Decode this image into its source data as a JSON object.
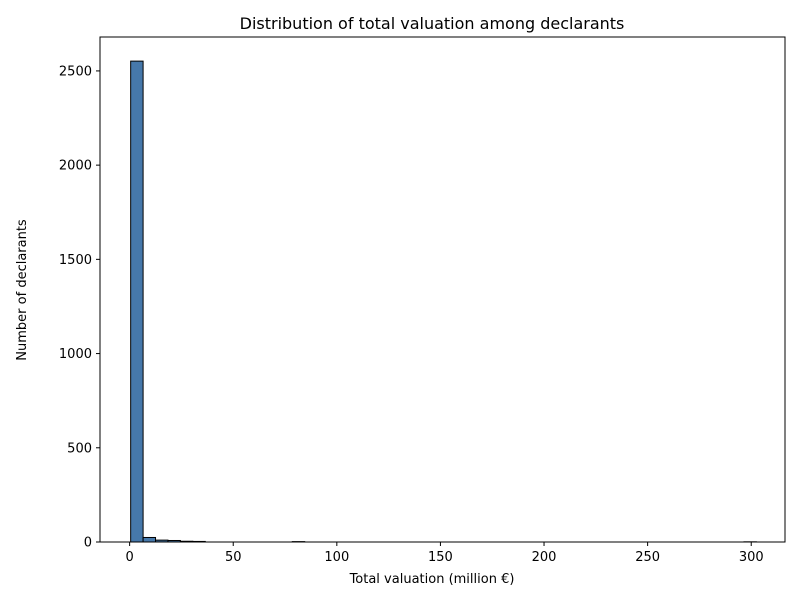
{
  "chart_data": {
    "type": "bar",
    "title": "Distribution of total valuation among declarants",
    "xlabel": "Total valuation (million €)",
    "ylabel": "Number of declarants",
    "xlim": [
      -14.3,
      316.3
    ],
    "ylim": [
      0,
      2680
    ],
    "xticks": [
      0,
      50,
      100,
      150,
      200,
      250,
      300
    ],
    "yticks": [
      0,
      500,
      1000,
      1500,
      2000,
      2500
    ],
    "bin_width": 6.0,
    "bins": [
      {
        "x0": 0.5,
        "x1": 6.5,
        "count": 2552
      },
      {
        "x0": 6.5,
        "x1": 12.5,
        "count": 24
      },
      {
        "x0": 12.5,
        "x1": 18.5,
        "count": 10
      },
      {
        "x0": 18.5,
        "x1": 24.5,
        "count": 8
      },
      {
        "x0": 24.5,
        "x1": 30.5,
        "count": 4
      },
      {
        "x0": 30.5,
        "x1": 36.5,
        "count": 3
      },
      {
        "x0": 78.5,
        "x1": 84.5,
        "count": 2
      },
      {
        "x0": 296.5,
        "x1": 302.5,
        "count": 1
      }
    ],
    "bar_color": "#4678aa",
    "edge_color": "#000000",
    "grid": false,
    "legend": "none"
  }
}
